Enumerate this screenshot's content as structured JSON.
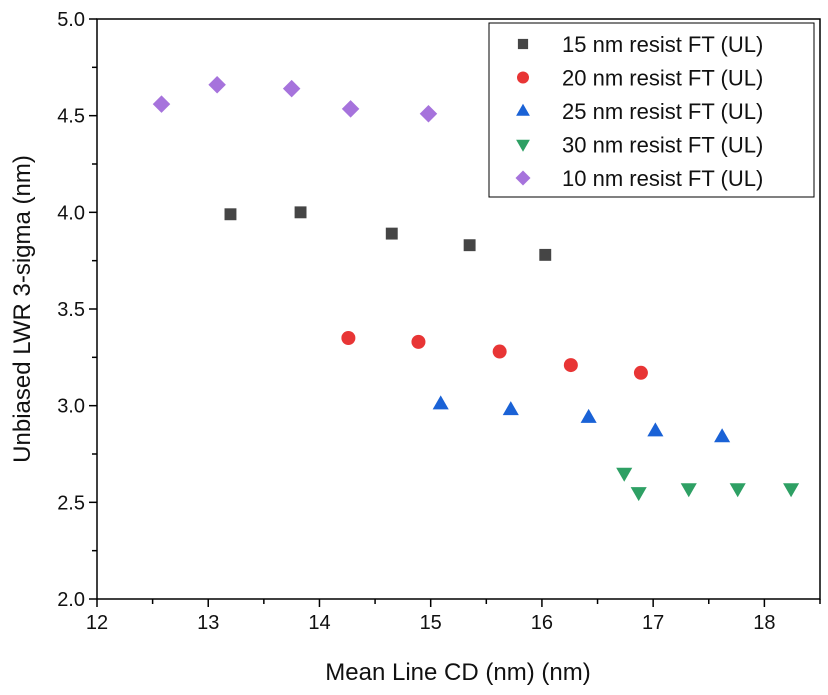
{
  "chart_data": {
    "type": "scatter",
    "title": "",
    "xlabel": "Mean Line CD (nm) (nm)",
    "ylabel": "Unbiased LWR 3-sigma (nm)",
    "xlim": [
      12,
      18.5
    ],
    "ylim": [
      2.0,
      5.0
    ],
    "xticks": [
      12,
      13,
      14,
      15,
      16,
      17,
      18
    ],
    "yticks": [
      "2.0",
      "2.5",
      "3.0",
      "3.5",
      "4.0",
      "4.5",
      "5.0"
    ],
    "grid": false,
    "legend_placement": "top-right",
    "series": [
      {
        "name": "15 nm resist FT (UL)",
        "marker": "square",
        "color": "#454545",
        "x": [
          13.2,
          13.83,
          14.65,
          15.35,
          16.03
        ],
        "y": [
          3.99,
          4.0,
          3.89,
          3.83,
          3.78
        ]
      },
      {
        "name": "20 nm resist FT (UL)",
        "marker": "circle",
        "color": "#e83535",
        "x": [
          14.26,
          14.89,
          15.62,
          16.26,
          16.89
        ],
        "y": [
          3.35,
          3.33,
          3.28,
          3.21,
          3.17
        ]
      },
      {
        "name": "25 nm resist FT (UL)",
        "marker": "triangle-up",
        "color": "#1a62d6",
        "x": [
          15.09,
          15.72,
          16.42,
          17.02,
          17.62
        ],
        "y": [
          3.01,
          2.98,
          2.94,
          2.87,
          2.84
        ]
      },
      {
        "name": "30 nm resist FT (UL)",
        "marker": "triangle-down",
        "color": "#2ea064",
        "x": [
          16.74,
          16.87,
          17.32,
          17.76,
          18.24
        ],
        "y": [
          2.65,
          2.55,
          2.57,
          2.57,
          2.57
        ]
      },
      {
        "name": "10 nm resist FT (UL)",
        "marker": "diamond",
        "color": "#a673dc",
        "x": [
          12.58,
          13.08,
          13.75,
          14.28,
          14.98
        ],
        "y": [
          4.56,
          4.66,
          4.64,
          4.535,
          4.51
        ]
      }
    ]
  }
}
